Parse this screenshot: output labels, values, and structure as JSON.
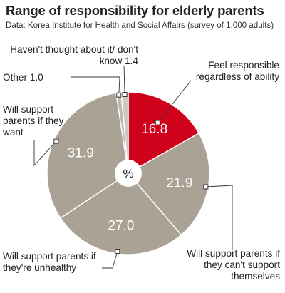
{
  "chart_data": {
    "type": "pie",
    "title": "Range of responsibility for elderly parents",
    "source": "Data: Korea Institute for Health and Social Affairs (survey of 1,000 adults)",
    "center_label": "%",
    "slices": [
      {
        "label": "Feel responsible regardless of ability",
        "value": 16.8,
        "value_text": "16.8",
        "color": "#d0021b"
      },
      {
        "label": "Will support parents if they can't support themselves",
        "value": 21.9,
        "value_text": "21.9",
        "color": "#a9a295"
      },
      {
        "label": "Will support parents if they're unhealthy",
        "value": 27.0,
        "value_text": "27.0",
        "color": "#a9a295"
      },
      {
        "label": "Will support parents if they want",
        "value": 31.9,
        "value_text": "31.9",
        "color": "#a9a295"
      },
      {
        "label": "Other",
        "value": 1.0,
        "value_text": "1.0",
        "color": "#bdb8ad"
      },
      {
        "label": "Haven't thought about it/ don't know",
        "value": 1.4,
        "value_text": "1.4",
        "color": "#cdc9c0"
      }
    ],
    "colors": {
      "highlight": "#d0021b",
      "base": "#a9a295",
      "separator": "#ffffff"
    }
  }
}
